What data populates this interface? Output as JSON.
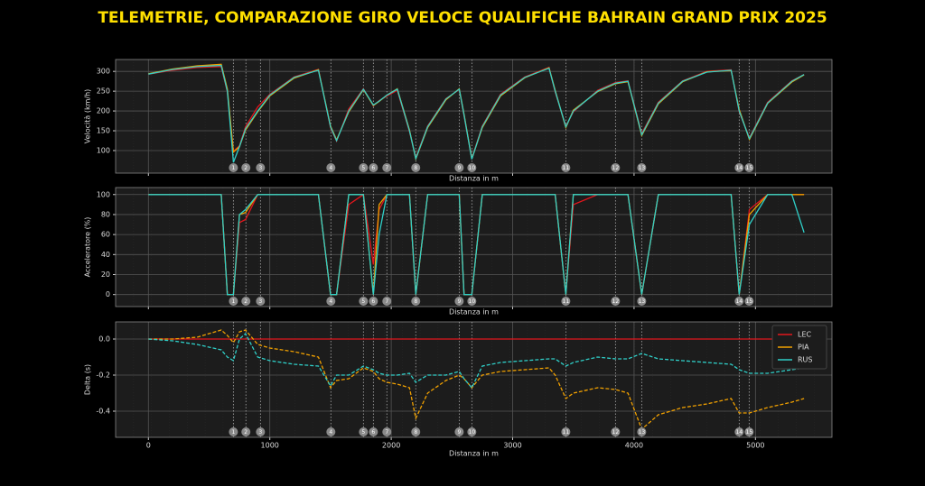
{
  "title": "TELEMETRIE, COMPARAZIONE GIRO VELOCE QUALIFICHE BAHRAIN GRAND PRIX 2025",
  "corners": {
    "numbers": [
      1,
      2,
      3,
      4,
      5,
      6,
      7,
      8,
      9,
      10,
      11,
      12,
      13,
      14,
      15
    ],
    "x": [
      700,
      803,
      923,
      1503,
      1771,
      1853,
      1964,
      2202,
      2560,
      2664,
      3438,
      3847,
      4063,
      4866,
      4948
    ]
  },
  "chart_data": [
    {
      "type": "line",
      "ylabel": "Velocità (km/h)",
      "xlabel": "Distanza in m",
      "xlim": [
        -270,
        5630
      ],
      "ylim": [
        43,
        330
      ],
      "yticks": [
        100,
        150,
        200,
        250,
        300
      ],
      "grid": true,
      "x": [
        0,
        200,
        400,
        600,
        650,
        700,
        750,
        800,
        900,
        1000,
        1200,
        1400,
        1500,
        1550,
        1650,
        1771,
        1853,
        1900,
        1964,
        2050,
        2150,
        2202,
        2300,
        2450,
        2560,
        2600,
        2664,
        2750,
        2900,
        3100,
        3300,
        3350,
        3438,
        3500,
        3700,
        3847,
        3950,
        4063,
        4200,
        4400,
        4600,
        4800,
        4866,
        4950,
        5100,
        5300,
        5400
      ],
      "series": [
        {
          "name": "LEC",
          "color": "#e3161c",
          "values": [
            293,
            303,
            310,
            312,
            248,
            98,
            112,
            160,
            210,
            242,
            286,
            305,
            158,
            124,
            205,
            256,
            213,
            226,
            238,
            252,
            148,
            82,
            162,
            231,
            254,
            188,
            80,
            162,
            242,
            286,
            310,
            248,
            162,
            198,
            252,
            272,
            276,
            143,
            222,
            276,
            300,
            304,
            198,
            132,
            222,
            276,
            292
          ]
        },
        {
          "name": "PIA",
          "color": "#f0a000",
          "values": [
            294,
            306,
            314,
            318,
            255,
            96,
            110,
            152,
            198,
            238,
            283,
            304,
            162,
            127,
            198,
            254,
            214,
            224,
            240,
            256,
            152,
            79,
            158,
            228,
            256,
            192,
            79,
            158,
            238,
            284,
            309,
            252,
            158,
            202,
            249,
            269,
            274,
            138,
            218,
            274,
            299,
            302,
            204,
            128,
            219,
            273,
            291
          ]
        },
        {
          "name": "RUS",
          "color": "#2fcfc8",
          "values": [
            293,
            305,
            312,
            315,
            250,
            70,
            110,
            155,
            200,
            240,
            285,
            303,
            160,
            125,
            200,
            255,
            215,
            225,
            240,
            255,
            150,
            80,
            160,
            230,
            255,
            190,
            78,
            160,
            240,
            285,
            308,
            250,
            160,
            200,
            250,
            270,
            275,
            140,
            220,
            275,
            298,
            303,
            200,
            130,
            220,
            275,
            292
          ]
        }
      ]
    },
    {
      "type": "line",
      "ylabel": "Acceleratore (%)",
      "xlabel": "Distanza in m",
      "xlim": [
        -270,
        5630
      ],
      "ylim": [
        -12,
        107
      ],
      "yticks": [
        0,
        20,
        40,
        60,
        80,
        100
      ],
      "grid": true,
      "x": [
        0,
        200,
        400,
        600,
        650,
        700,
        750,
        800,
        900,
        1000,
        1200,
        1400,
        1500,
        1550,
        1650,
        1771,
        1853,
        1900,
        1964,
        2050,
        2150,
        2202,
        2300,
        2450,
        2560,
        2600,
        2664,
        2750,
        2900,
        3100,
        3300,
        3350,
        3438,
        3500,
        3700,
        3847,
        3950,
        4063,
        4200,
        4400,
        4600,
        4800,
        4866,
        4950,
        5100,
        5300,
        5400
      ],
      "series": [
        {
          "name": "LEC",
          "color": "#e3161c",
          "values": [
            100,
            100,
            100,
            100,
            0,
            0,
            72,
            75,
            100,
            100,
            100,
            100,
            0,
            0,
            90,
            100,
            30,
            85,
            100,
            100,
            100,
            0,
            100,
            100,
            100,
            0,
            0,
            100,
            100,
            100,
            100,
            100,
            0,
            90,
            100,
            100,
            100,
            0,
            100,
            100,
            100,
            100,
            0,
            85,
            100,
            100,
            100
          ]
        },
        {
          "name": "PIA",
          "color": "#f0a000",
          "values": [
            100,
            100,
            100,
            100,
            0,
            0,
            80,
            82,
            100,
            100,
            100,
            100,
            0,
            0,
            100,
            100,
            0,
            90,
            100,
            100,
            100,
            0,
            100,
            100,
            100,
            0,
            0,
            100,
            100,
            100,
            100,
            100,
            0,
            100,
            100,
            100,
            100,
            0,
            100,
            100,
            100,
            100,
            0,
            80,
            100,
            100,
            100
          ]
        },
        {
          "name": "RUS",
          "color": "#2fcfc8",
          "values": [
            100,
            100,
            100,
            100,
            0,
            0,
            80,
            85,
            100,
            100,
            100,
            100,
            0,
            0,
            100,
            100,
            0,
            60,
            100,
            100,
            100,
            0,
            100,
            100,
            100,
            0,
            0,
            100,
            100,
            100,
            100,
            100,
            0,
            100,
            100,
            100,
            100,
            0,
            100,
            100,
            100,
            100,
            0,
            70,
            100,
            100,
            62
          ]
        }
      ]
    },
    {
      "type": "line",
      "ylabel": "Delta (s)",
      "xlabel": "Distanza in m",
      "legend": "upper right",
      "xlim": [
        -270,
        5630
      ],
      "ylim": [
        -0.545,
        0.095
      ],
      "grid": true,
      "xticks": [
        0,
        1000,
        2000,
        3000,
        4000,
        5000
      ],
      "yticks": [
        {
          "value": 0,
          "label": "0.0"
        },
        -0.2,
        -0.4
      ],
      "x": [
        0,
        200,
        400,
        600,
        650,
        700,
        750,
        800,
        900,
        1000,
        1200,
        1400,
        1500,
        1550,
        1650,
        1771,
        1853,
        1900,
        1964,
        2050,
        2150,
        2202,
        2300,
        2450,
        2560,
        2600,
        2664,
        2750,
        2900,
        3100,
        3300,
        3350,
        3438,
        3500,
        3700,
        3847,
        3950,
        4063,
        4200,
        4400,
        4600,
        4800,
        4866,
        4950,
        5100,
        5300,
        5400
      ],
      "series": [
        {
          "name": "LEC",
          "color": "#e3161c",
          "dashed": false,
          "values": [
            0,
            0,
            0,
            0,
            0,
            0,
            0,
            0,
            0,
            0,
            0,
            0,
            0,
            0,
            0,
            0,
            0,
            0,
            0,
            0,
            0,
            0,
            0,
            0,
            0,
            0,
            0,
            0,
            0,
            0,
            0,
            0,
            0,
            0,
            0,
            0,
            0,
            0,
            0,
            0,
            0,
            0,
            0,
            0,
            0,
            0,
            0
          ]
        },
        {
          "name": "PIA",
          "color": "#f0a000",
          "dashed": true,
          "values": [
            0,
            0,
            0.01,
            0.05,
            0.02,
            -0.02,
            0.04,
            0.05,
            -0.03,
            -0.05,
            -0.07,
            -0.1,
            -0.27,
            -0.23,
            -0.22,
            -0.16,
            -0.18,
            -0.22,
            -0.24,
            -0.25,
            -0.27,
            -0.44,
            -0.3,
            -0.23,
            -0.2,
            -0.22,
            -0.27,
            -0.2,
            -0.18,
            -0.17,
            -0.16,
            -0.2,
            -0.33,
            -0.3,
            -0.27,
            -0.28,
            -0.3,
            -0.5,
            -0.42,
            -0.38,
            -0.36,
            -0.33,
            -0.41,
            -0.41,
            -0.38,
            -0.35,
            -0.33
          ]
        },
        {
          "name": "RUS",
          "color": "#2fcfc8",
          "dashed": true,
          "values": [
            0,
            -0.01,
            -0.03,
            -0.06,
            -0.1,
            -0.12,
            0,
            0.03,
            -0.1,
            -0.12,
            -0.14,
            -0.15,
            -0.26,
            -0.2,
            -0.2,
            -0.15,
            -0.17,
            -0.19,
            -0.2,
            -0.2,
            -0.19,
            -0.24,
            -0.2,
            -0.2,
            -0.18,
            -0.22,
            -0.27,
            -0.15,
            -0.13,
            -0.12,
            -0.11,
            -0.11,
            -0.15,
            -0.13,
            -0.1,
            -0.11,
            -0.11,
            -0.08,
            -0.11,
            -0.12,
            -0.13,
            -0.14,
            -0.17,
            -0.19,
            -0.19,
            -0.17,
            -0.16
          ]
        }
      ]
    }
  ]
}
